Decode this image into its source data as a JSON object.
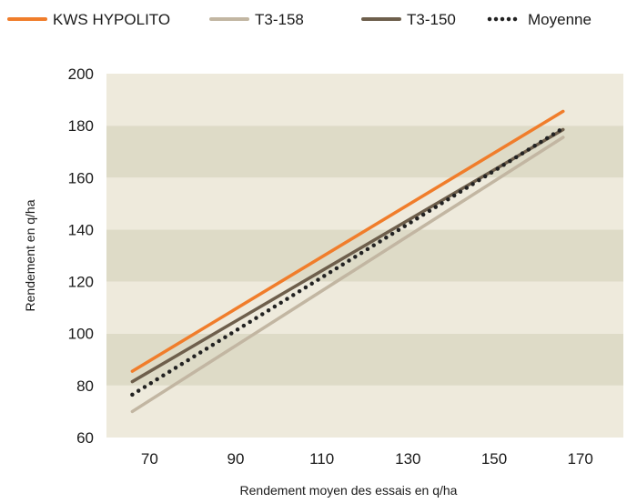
{
  "chart_data": {
    "type": "line",
    "title": "",
    "xlabel": "Rendement moyen des essais en q/ha",
    "ylabel": "Rendement en q/ha",
    "xlim": [
      60,
      180
    ],
    "ylim": [
      60,
      200
    ],
    "xticks": [
      70,
      90,
      110,
      130,
      150,
      170
    ],
    "yticks": [
      60,
      80,
      100,
      120,
      140,
      160,
      180,
      200
    ],
    "legend_position": "top",
    "grid": "alternating horizontal bands",
    "band_colors": [
      "#eeeadc",
      "#dedbc7"
    ],
    "series": [
      {
        "name": "KWS HYPOLITO",
        "color": "#f07d2b",
        "style": "solid",
        "x": [
          66,
          166
        ],
        "y": [
          85.5,
          185.5
        ]
      },
      {
        "name": "T3-158",
        "color": "#c2b6a2",
        "style": "solid",
        "x": [
          66,
          166
        ],
        "y": [
          70,
          175.5
        ]
      },
      {
        "name": "T3-150",
        "color": "#6e5f4c",
        "style": "solid",
        "x": [
          66,
          166
        ],
        "y": [
          81.5,
          178.5
        ]
      },
      {
        "name": "Moyenne",
        "color": "#222222",
        "style": "dotted",
        "x": [
          66,
          166
        ],
        "y": [
          76.5,
          179
        ]
      }
    ]
  }
}
